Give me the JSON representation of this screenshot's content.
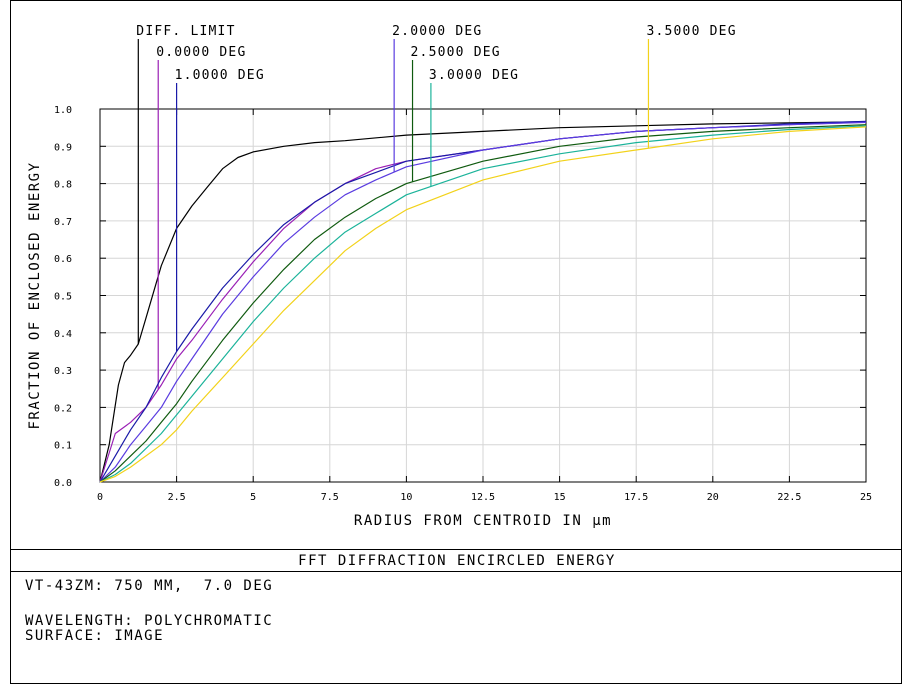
{
  "chart_data": {
    "type": "line",
    "title": "FFT DIFFRACTION ENCIRCLED ENERGY",
    "xlabel": "RADIUS FROM CENTROID IN µm",
    "ylabel": "FRACTION OF ENCLOSED ENERGY",
    "xlim": [
      0,
      25
    ],
    "ylim": [
      0,
      1.0
    ],
    "x_ticks": [
      0,
      2.5,
      5,
      7.5,
      10,
      12.5,
      15,
      17.5,
      20,
      22.5,
      25
    ],
    "x_tick_labels": [
      "0",
      "2.5",
      "5",
      "7.5",
      "10",
      "12.5",
      "15",
      "17.5",
      "20",
      "22.5",
      "25"
    ],
    "y_ticks": [
      0.0,
      0.1,
      0.2,
      0.3,
      0.4,
      0.5,
      0.6,
      0.7,
      0.8,
      0.9,
      1.0
    ],
    "y_tick_labels": [
      "0.0",
      "0.1",
      "0.2",
      "0.3",
      "0.4",
      "0.5",
      "0.6",
      "0.7",
      "0.8",
      "0.9",
      "1.0"
    ],
    "grid": true,
    "series": [
      {
        "name": "DIFF. LIMIT",
        "color": "#000000",
        "label_x": 1.25,
        "x": [
          0,
          0.3,
          0.6,
          0.8,
          1.0,
          1.25,
          1.5,
          2.0,
          2.5,
          3.0,
          3.5,
          4.0,
          4.5,
          5.0,
          6.0,
          7.0,
          8.0,
          10.0,
          12.5,
          15.0,
          17.5,
          20.0,
          22.5,
          25.0
        ],
        "y": [
          0,
          0.1,
          0.26,
          0.32,
          0.34,
          0.37,
          0.44,
          0.58,
          0.68,
          0.74,
          0.79,
          0.84,
          0.87,
          0.885,
          0.9,
          0.91,
          0.915,
          0.93,
          0.94,
          0.95,
          0.955,
          0.96,
          0.963,
          0.966
        ]
      },
      {
        "name": "0.0000 DEG",
        "color": "#9a1fb5",
        "label_x": 1.9,
        "x": [
          0,
          0.5,
          1.0,
          1.5,
          2.0,
          2.5,
          3.0,
          4.0,
          5.0,
          6.0,
          7.0,
          8.0,
          9.0,
          10.0,
          12.5,
          15.0,
          17.5,
          20.0,
          22.5,
          25.0
        ],
        "y": [
          0,
          0.13,
          0.16,
          0.2,
          0.26,
          0.33,
          0.38,
          0.49,
          0.59,
          0.68,
          0.75,
          0.8,
          0.84,
          0.86,
          0.89,
          0.92,
          0.94,
          0.95,
          0.958,
          0.965
        ]
      },
      {
        "name": "1.0000 DEG",
        "color": "#1a1aa8",
        "label_x": 2.5,
        "x": [
          0,
          0.5,
          1.0,
          1.5,
          2.0,
          2.5,
          3.0,
          4.0,
          5.0,
          6.0,
          7.0,
          8.0,
          9.0,
          10.0,
          12.5,
          15.0,
          17.5,
          20.0,
          22.5,
          25.0
        ],
        "y": [
          0,
          0.07,
          0.14,
          0.2,
          0.28,
          0.35,
          0.41,
          0.52,
          0.61,
          0.69,
          0.75,
          0.8,
          0.83,
          0.86,
          0.89,
          0.92,
          0.94,
          0.95,
          0.96,
          0.967
        ]
      },
      {
        "name": "2.0000 DEG",
        "color": "#5a3ce0",
        "label_x": 9.6,
        "x": [
          0,
          0.5,
          1.0,
          1.5,
          2.0,
          2.5,
          3.0,
          4.0,
          5.0,
          6.0,
          7.0,
          8.0,
          9.0,
          10.0,
          12.5,
          15.0,
          17.5,
          20.0,
          22.5,
          25.0
        ],
        "y": [
          0,
          0.04,
          0.1,
          0.15,
          0.2,
          0.27,
          0.33,
          0.45,
          0.55,
          0.64,
          0.71,
          0.77,
          0.81,
          0.845,
          0.89,
          0.92,
          0.94,
          0.95,
          0.958,
          0.964
        ]
      },
      {
        "name": "2.5000 DEG",
        "color": "#0f5a0f",
        "label_x": 10.2,
        "x": [
          0,
          0.5,
          1.0,
          1.5,
          2.0,
          2.5,
          3.0,
          4.0,
          5.0,
          6.0,
          7.0,
          8.0,
          9.0,
          10.0,
          12.5,
          15.0,
          17.5,
          20.0,
          22.5,
          25.0
        ],
        "y": [
          0,
          0.03,
          0.07,
          0.11,
          0.16,
          0.21,
          0.27,
          0.38,
          0.48,
          0.57,
          0.65,
          0.71,
          0.76,
          0.8,
          0.86,
          0.9,
          0.925,
          0.94,
          0.95,
          0.958
        ]
      },
      {
        "name": "3.0000 DEG",
        "color": "#1bb39a",
        "label_x": 10.8,
        "x": [
          0,
          0.5,
          1.0,
          1.5,
          2.0,
          2.5,
          3.0,
          4.0,
          5.0,
          6.0,
          7.0,
          8.0,
          9.0,
          10.0,
          12.5,
          15.0,
          17.5,
          20.0,
          22.5,
          25.0
        ],
        "y": [
          0,
          0.02,
          0.05,
          0.09,
          0.13,
          0.18,
          0.23,
          0.33,
          0.43,
          0.52,
          0.6,
          0.67,
          0.72,
          0.77,
          0.84,
          0.88,
          0.91,
          0.93,
          0.945,
          0.955
        ]
      },
      {
        "name": "3.5000 DEG",
        "color": "#f2d21a",
        "label_x": 17.9,
        "x": [
          0,
          0.5,
          1.0,
          1.5,
          2.0,
          2.5,
          3.0,
          4.0,
          5.0,
          6.0,
          7.0,
          8.0,
          9.0,
          10.0,
          12.5,
          15.0,
          17.5,
          20.0,
          22.5,
          25.0
        ],
        "y": [
          0,
          0.015,
          0.04,
          0.07,
          0.1,
          0.14,
          0.19,
          0.28,
          0.37,
          0.46,
          0.54,
          0.62,
          0.68,
          0.73,
          0.81,
          0.86,
          0.89,
          0.92,
          0.94,
          0.952
        ]
      }
    ]
  },
  "footer": {
    "title": "FFT DIFFRACTION ENCIRCLED ENERGY",
    "line1": "VT-43ZM: 750 MM,  7.0 DEG",
    "line2": "WAVELENGTH: POLYCHROMATIC",
    "line3": "SURFACE: IMAGE"
  }
}
